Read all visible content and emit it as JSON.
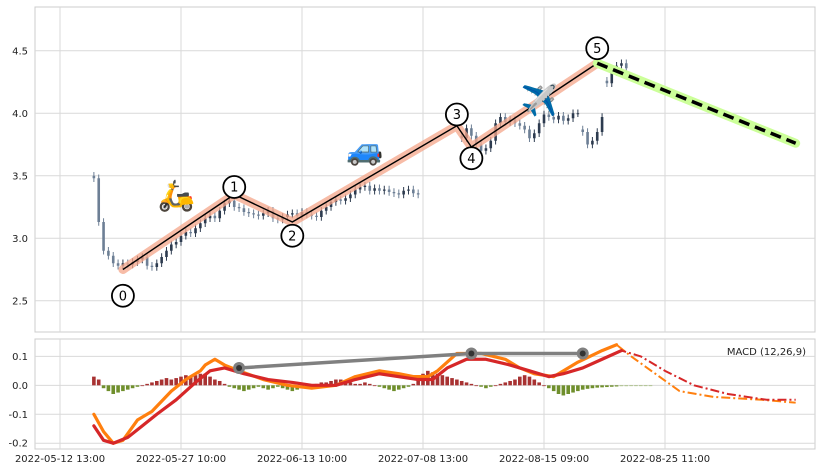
{
  "chart_data": [
    {
      "type": "candlestick",
      "panel": "price",
      "title": "",
      "xlabel": "",
      "ylabel": "",
      "ylim": [
        2.25,
        4.85
      ],
      "yticks": [
        2.5,
        3.0,
        3.5,
        4.0,
        4.5
      ],
      "grid": true,
      "x_range": [
        0,
        155
      ],
      "x_ticks": [
        {
          "x": 0,
          "label": "2022-05-12 13:00"
        },
        {
          "x": 25,
          "label": "2022-05-27 10:00"
        },
        {
          "x": 50,
          "label": "2022-06-13 10:00"
        },
        {
          "x": 75,
          "label": "2022-07-08 13:00"
        },
        {
          "x": 100,
          "label": "2022-08-15 09:00"
        },
        {
          "x": 125,
          "label": "2022-08-25 11:00"
        }
      ],
      "close_path": [
        [
          7,
          3.48
        ],
        [
          8,
          3.13
        ],
        [
          9,
          2.9
        ],
        [
          10,
          2.86
        ],
        [
          11,
          2.8
        ],
        [
          12,
          2.78
        ],
        [
          13,
          2.8
        ],
        [
          14,
          2.79
        ],
        [
          15,
          2.81
        ],
        [
          16,
          2.83
        ],
        [
          17,
          2.85
        ],
        [
          18,
          2.78
        ],
        [
          19,
          2.77
        ],
        [
          20,
          2.8
        ],
        [
          21,
          2.85
        ],
        [
          22,
          2.9
        ],
        [
          23,
          2.95
        ],
        [
          24,
          2.97
        ],
        [
          25,
          3.02
        ],
        [
          26,
          3.05
        ],
        [
          27,
          3.04
        ],
        [
          28,
          3.08
        ],
        [
          29,
          3.12
        ],
        [
          30,
          3.16
        ],
        [
          31,
          3.18
        ],
        [
          32,
          3.16
        ],
        [
          33,
          3.22
        ],
        [
          34,
          3.28
        ],
        [
          35,
          3.3
        ],
        [
          36,
          3.25
        ],
        [
          37,
          3.24
        ],
        [
          38,
          3.21
        ],
        [
          39,
          3.2
        ],
        [
          40,
          3.19
        ],
        [
          41,
          3.18
        ],
        [
          42,
          3.2
        ],
        [
          43,
          3.22
        ],
        [
          44,
          3.16
        ],
        [
          45,
          3.15
        ],
        [
          46,
          3.17
        ],
        [
          47,
          3.19
        ],
        [
          48,
          3.2
        ],
        [
          49,
          3.18
        ],
        [
          50,
          3.21
        ],
        [
          51,
          3.19
        ],
        [
          52,
          3.18
        ],
        [
          53,
          3.17
        ],
        [
          54,
          3.22
        ],
        [
          55,
          3.25
        ],
        [
          56,
          3.29
        ],
        [
          57,
          3.31
        ],
        [
          58,
          3.3
        ],
        [
          59,
          3.32
        ],
        [
          60,
          3.35
        ],
        [
          61,
          3.39
        ],
        [
          62,
          3.41
        ],
        [
          63,
          3.42
        ],
        [
          64,
          3.38
        ],
        [
          65,
          3.4
        ],
        [
          66,
          3.38
        ],
        [
          67,
          3.39
        ],
        [
          68,
          3.37
        ],
        [
          69,
          3.36
        ],
        [
          70,
          3.35
        ],
        [
          71,
          3.38
        ],
        [
          72,
          3.39
        ],
        [
          73,
          3.36
        ],
        [
          74,
          3.35
        ],
        null,
        [
          83,
          3.8
        ],
        [
          84,
          3.88
        ],
        [
          85,
          3.82
        ],
        [
          86,
          3.75
        ],
        [
          87,
          3.7
        ],
        [
          88,
          3.72
        ],
        [
          89,
          3.78
        ],
        [
          90,
          3.92
        ],
        [
          91,
          3.97
        ],
        [
          92,
          3.93
        ],
        [
          93,
          3.95
        ],
        [
          94,
          3.92
        ],
        [
          95,
          3.9
        ],
        [
          96,
          3.87
        ],
        [
          97,
          3.8
        ],
        [
          98,
          3.84
        ],
        [
          99,
          3.92
        ],
        [
          100,
          3.99
        ],
        [
          101,
          3.97
        ],
        [
          102,
          3.95
        ],
        [
          103,
          3.98
        ],
        [
          104,
          3.94
        ],
        [
          105,
          3.96
        ],
        [
          106,
          4.0
        ],
        [
          107,
          4.0
        ],
        null,
        [
          108,
          3.85
        ],
        [
          109,
          3.75
        ],
        [
          110,
          3.78
        ],
        [
          111,
          3.85
        ],
        [
          112,
          3.97
        ],
        null,
        [
          113,
          4.24
        ],
        [
          114,
          4.33
        ],
        [
          115,
          4.38
        ],
        [
          116,
          4.4
        ],
        [
          117,
          4.36
        ]
      ],
      "elliott_waves": [
        {
          "label": "0",
          "x": 13,
          "y": 2.75,
          "label_y": 2.54
        },
        {
          "label": "1",
          "x": 36,
          "y": 3.35,
          "label_y": 3.41
        },
        {
          "label": "2",
          "x": 48,
          "y": 3.13,
          "label_y": 3.02
        },
        {
          "label": "3",
          "x": 82,
          "y": 3.9,
          "label_y": 3.99
        },
        {
          "label": "4",
          "x": 85,
          "y": 3.73,
          "label_y": 3.64
        },
        {
          "label": "5",
          "x": 111,
          "y": 4.4,
          "label_y": 4.52
        }
      ],
      "forecast": [
        [
          111,
          4.4
        ],
        [
          152,
          3.76
        ]
      ],
      "emoji_markers": [
        {
          "icon": "motor-scooter-icon",
          "glyph": "🛵",
          "x": 24,
          "y": 3.33
        },
        {
          "icon": "car-icon",
          "glyph": "🚙",
          "x": 63,
          "y": 3.7
        },
        {
          "icon": "airplane-icon",
          "glyph": "✈️",
          "x": 99,
          "y": 4.09
        }
      ],
      "colors": {
        "wave_band": "#f4a58a",
        "wave_line": "#000000",
        "forecast_band": "#ccff99",
        "forecast_line": "#000000",
        "candle_up": "#2d3b4f",
        "candle_down": "#6d7f95"
      }
    },
    {
      "type": "line",
      "panel": "macd",
      "title": "",
      "legend": "MACD (12,26,9)",
      "ylim": [
        -0.22,
        0.16
      ],
      "yticks": [
        -0.2,
        -0.1,
        0.0,
        0.1
      ],
      "grid": true,
      "x_range": [
        0,
        155
      ],
      "series": [
        {
          "name": "",
          "color": "#ff7f0e",
          "points": [
            [
              7,
              -0.1
            ],
            [
              9,
              -0.16
            ],
            [
              11,
              -0.2
            ],
            [
              13,
              -0.19
            ],
            [
              16,
              -0.12
            ],
            [
              19,
              -0.09
            ],
            [
              23,
              -0.02
            ],
            [
              26,
              0.02
            ],
            [
              29,
              0.05
            ],
            [
              30,
              0.07
            ],
            [
              32,
              0.09
            ],
            [
              34,
              0.07
            ],
            [
              37,
              0.05
            ],
            [
              42,
              0.02
            ],
            [
              47,
              0.0
            ],
            [
              52,
              -0.01
            ],
            [
              57,
              0.0
            ],
            [
              61,
              0.03
            ],
            [
              66,
              0.05
            ],
            [
              70,
              0.04
            ],
            [
              73,
              0.03
            ],
            [
              76,
              0.03
            ],
            [
              78,
              0.05
            ],
            [
              82,
              0.11
            ],
            [
              87,
              0.11
            ],
            [
              92,
              0.09
            ],
            [
              95,
              0.06
            ],
            [
              98,
              0.04
            ],
            [
              102,
              0.03
            ],
            [
              104,
              0.05
            ],
            [
              107,
              0.08
            ],
            [
              112,
              0.12
            ],
            [
              115,
              0.14
            ],
            [
              118,
              0.1
            ],
            [
              123,
              0.04
            ],
            [
              128,
              -0.02
            ],
            [
              135,
              -0.04
            ],
            [
              145,
              -0.05
            ],
            [
              152,
              -0.06
            ]
          ]
        },
        {
          "name": "",
          "color": "#d62728",
          "points": [
            [
              7,
              -0.14
            ],
            [
              9,
              -0.19
            ],
            [
              11,
              -0.2
            ],
            [
              14,
              -0.18
            ],
            [
              17,
              -0.14
            ],
            [
              20,
              -0.1
            ],
            [
              24,
              -0.05
            ],
            [
              28,
              0.01
            ],
            [
              31,
              0.05
            ],
            [
              34,
              0.06
            ],
            [
              38,
              0.04
            ],
            [
              43,
              0.02
            ],
            [
              48,
              0.01
            ],
            [
              52,
              0.0
            ],
            [
              57,
              0.0
            ],
            [
              61,
              0.02
            ],
            [
              66,
              0.04
            ],
            [
              70,
              0.03
            ],
            [
              74,
              0.02
            ],
            [
              77,
              0.02
            ],
            [
              80,
              0.06
            ],
            [
              84,
              0.09
            ],
            [
              88,
              0.09
            ],
            [
              93,
              0.07
            ],
            [
              97,
              0.05
            ],
            [
              101,
              0.03
            ],
            [
              104,
              0.04
            ],
            [
              108,
              0.06
            ],
            [
              112,
              0.09
            ],
            [
              116,
              0.12
            ],
            [
              120,
              0.1
            ],
            [
              125,
              0.05
            ],
            [
              131,
              0.0
            ],
            [
              138,
              -0.03
            ],
            [
              146,
              -0.05
            ],
            [
              152,
              -0.05
            ]
          ]
        }
      ],
      "histogram": {
        "x_start": 7,
        "x_step": 1,
        "values": [
          0.03,
          0.02,
          -0.01,
          -0.02,
          -0.03,
          -0.025,
          -0.02,
          -0.015,
          -0.01,
          -0.005,
          0.0,
          0.005,
          0.01,
          0.015,
          0.02,
          0.025,
          0.02,
          0.025,
          0.03,
          0.035,
          0.03,
          0.035,
          0.04,
          0.04,
          0.03,
          0.02,
          0.015,
          0.005,
          -0.005,
          -0.01,
          -0.015,
          -0.02,
          -0.015,
          -0.01,
          -0.005,
          -0.01,
          -0.015,
          -0.01,
          -0.005,
          -0.01,
          -0.015,
          -0.02,
          -0.015,
          -0.01,
          -0.005,
          0.0,
          0.005,
          0.01,
          0.01,
          0.015,
          0.02,
          0.02,
          0.015,
          0.01,
          0.005,
          0.005,
          0.01,
          0.005,
          0.0,
          -0.005,
          -0.01,
          -0.015,
          -0.02,
          -0.015,
          -0.01,
          -0.005,
          0.005,
          0.02,
          0.04,
          0.05,
          0.045,
          0.04,
          0.035,
          0.03,
          0.025,
          0.02,
          0.015,
          0.01,
          0.005,
          0.0,
          -0.005,
          -0.01,
          -0.005,
          0.0,
          0.005,
          0.01,
          0.015,
          0.02,
          0.03,
          0.035,
          0.03,
          0.02,
          0.01,
          0.0,
          -0.01,
          -0.02,
          -0.03,
          -0.035,
          -0.03,
          -0.025,
          -0.02,
          -0.015,
          -0.012,
          -0.01,
          -0.008,
          -0.007,
          -0.006,
          -0.005,
          -0.004,
          -0.003,
          -0.003,
          -0.002,
          -0.002,
          -0.002,
          -0.001,
          -0.001
        ],
        "forecast_from": 116,
        "colors": {
          "pos": "#a83232",
          "neg": "#6f8f2c",
          "pos_forecast": "#c48a8a",
          "neg_forecast": "#a6bf7d"
        }
      },
      "divergence_line": {
        "color": "#808080",
        "points": [
          [
            37,
            0.06
          ],
          [
            85,
            0.11
          ],
          [
            108,
            0.11
          ]
        ]
      },
      "forecast_from": 116
    }
  ]
}
